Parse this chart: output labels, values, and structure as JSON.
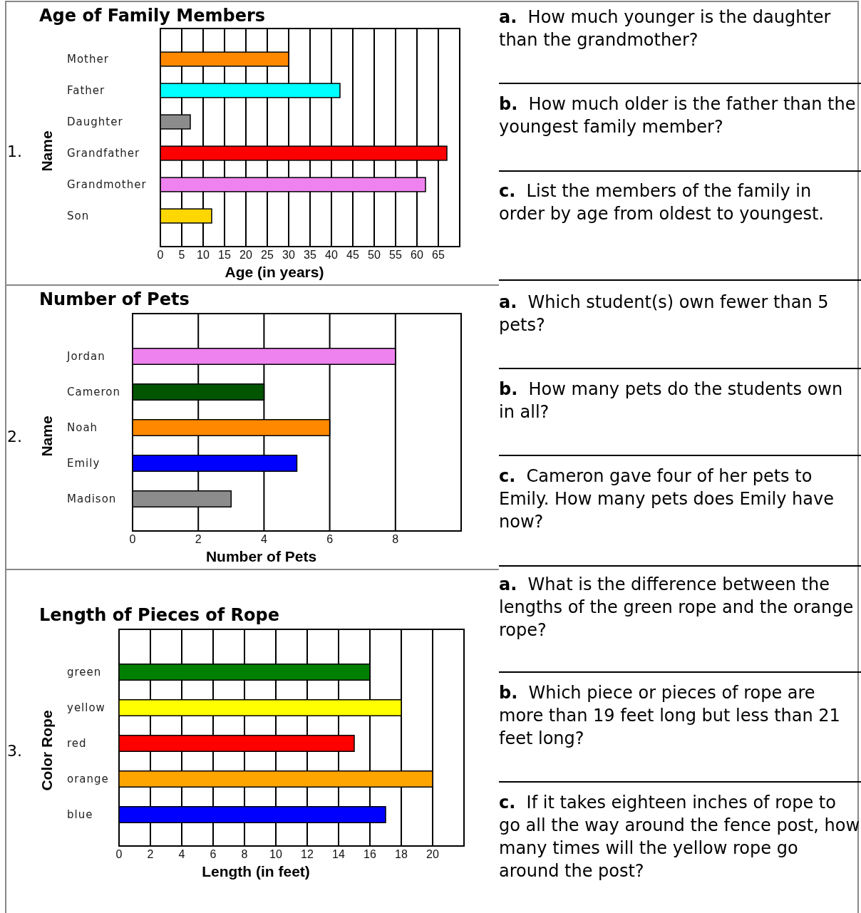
{
  "chart_data": [
    {
      "type": "bar",
      "orientation": "horizontal",
      "title": "Age of Family Members",
      "xlabel": "Age (in years)",
      "ylabel": "Name",
      "categories": [
        "Mother",
        "Father",
        "Daughter",
        "Grandfather",
        "Grandmother",
        "Son"
      ],
      "values": [
        30,
        42,
        7,
        67,
        62,
        12
      ],
      "colors": [
        "#ff8800",
        "#00ffff",
        "#8c8c8c",
        "#ff0000",
        "#ee82ee",
        "#ffd700"
      ],
      "xlim": [
        0,
        70
      ],
      "xticks": [
        0,
        5,
        10,
        15,
        20,
        25,
        30,
        35,
        40,
        45,
        50,
        55,
        60,
        65
      ],
      "grid": "x",
      "annotations": [
        "1.",
        "a. How much younger is the daughter than the grandmother?",
        "b. How much older is the father than the youngest family member?",
        "c. List the members of the family in order by age from oldest to youngest."
      ]
    },
    {
      "type": "bar",
      "orientation": "horizontal",
      "title": "Number of Pets",
      "xlabel": "Number of Pets",
      "ylabel": "Name",
      "categories": [
        "Jordan",
        "Cameron",
        "Noah",
        "Emily",
        "Madison"
      ],
      "values": [
        8,
        4,
        6,
        5,
        3
      ],
      "colors": [
        "#ee82ee",
        "#005500",
        "#ff8800",
        "#0000ff",
        "#8c8c8c"
      ],
      "xlim": [
        0,
        10
      ],
      "xticks": [
        0,
        2,
        4,
        6,
        8
      ],
      "grid": "x",
      "annotations": [
        "2.",
        "a. Which student(s) own fewer than 5 pets?",
        "b. How many pets do the students own in all?",
        "c. Cameron gave four of her pets to Emily. How many pets does Emily have now?"
      ]
    },
    {
      "type": "bar",
      "orientation": "horizontal",
      "title": "Length of Pieces of Rope",
      "xlabel": "Length (in feet)",
      "ylabel": "Color Rope",
      "categories": [
        "green",
        "yellow",
        "red",
        "orange",
        "blue"
      ],
      "values": [
        16,
        18,
        15,
        20,
        17
      ],
      "colors": [
        "#008000",
        "#ffff00",
        "#ff0000",
        "#ffa500",
        "#0000ff"
      ],
      "xlim": [
        0,
        22
      ],
      "xticks": [
        0,
        2,
        4,
        6,
        8,
        10,
        12,
        14,
        16,
        18,
        20
      ],
      "grid": "x",
      "annotations": [
        "3.",
        "a. What is the difference between the lengths of the green rope and the orange rope?",
        "b. Which piece or pieces of rope are more than 19 feet long but less than 21 feet long?",
        "c. If it takes eighteen inches of rope to go all the way around the fence post, how many times will the yellow rope go around the post?"
      ]
    }
  ]
}
